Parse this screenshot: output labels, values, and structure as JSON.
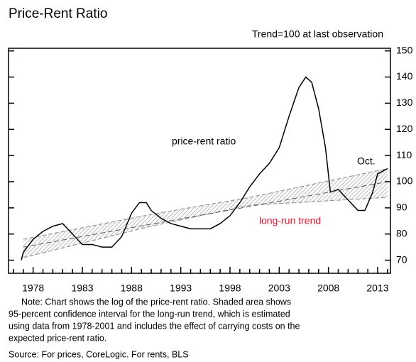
{
  "chart_data": {
    "type": "line",
    "title": "Price-Rent Ratio",
    "subtitle": "Trend=100 at last observation",
    "annotations": {
      "line_label": "price-rent ratio",
      "trend_label": "long-run trend",
      "end_label": "Oct."
    },
    "xlim": [
      1975.5,
      2014.3
    ],
    "ylim": [
      65,
      151
    ],
    "xticks": [
      1978,
      1983,
      1988,
      1993,
      1998,
      2003,
      2008,
      2013
    ],
    "xticks_minor": [
      1976,
      1977,
      1979,
      1980,
      1981,
      1982,
      1984,
      1985,
      1986,
      1987,
      1989,
      1990,
      1991,
      1992,
      1994,
      1995,
      1996,
      1997,
      1999,
      2000,
      2001,
      2002,
      2004,
      2005,
      2006,
      2007,
      2009,
      2010,
      2011,
      2012,
      2014
    ],
    "yticks": [
      70,
      80,
      90,
      100,
      110,
      120,
      130,
      140,
      150
    ],
    "grid": false,
    "series": [
      {
        "name": "price-rent ratio",
        "color": "#000000",
        "x": [
          1976.8,
          1977,
          1978,
          1979,
          1980,
          1981,
          1982,
          1983,
          1984,
          1985,
          1986,
          1987,
          1988,
          1988.8,
          1989.5,
          1990,
          1991,
          1992,
          1993,
          1994,
          1995,
          1996,
          1997,
          1998,
          1999,
          2000,
          2001,
          2002,
          2003,
          2004,
          2005,
          2005.7,
          2006.3,
          2007,
          2007.7,
          2008.2,
          2009,
          2010,
          2011,
          2011.7,
          2012.5,
          2013,
          2014
        ],
        "values": [
          70,
          73,
          78,
          81,
          83,
          84,
          80,
          76,
          76,
          75,
          75,
          79,
          88,
          92,
          92,
          89,
          86,
          84,
          83,
          82,
          82,
          82,
          84,
          87,
          92,
          98,
          103,
          107,
          113,
          125,
          136,
          140,
          138,
          128,
          113,
          96,
          97,
          93,
          89,
          89,
          96,
          103,
          105
        ]
      },
      {
        "name": "long-run trend",
        "color": "#555555",
        "x": [
          1977,
          2014
        ],
        "values": [
          75,
          100
        ]
      }
    ],
    "band": {
      "color": "#9a9a9a",
      "x": [
        1977,
        1990,
        2000,
        2014
      ],
      "upper": [
        78,
        87.5,
        94,
        105
      ],
      "lower": [
        71,
        83,
        91,
        94
      ]
    },
    "note_lines": [
      "Note: Chart shows the log of the price-rent ratio. Shaded area shows",
      "95-percent confidence interval for the long-run trend, which is estimated",
      "using data from 1978-2001 and includes the effect of carrying costs on the",
      "expected price-rent ratio."
    ],
    "source": "Source: For prices, CoreLogic. For rents, BLS"
  }
}
